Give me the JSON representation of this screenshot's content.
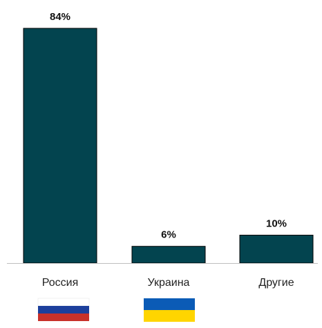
{
  "chart_data": {
    "type": "bar",
    "categories": [
      "Россия",
      "Украина",
      "Другие"
    ],
    "values": [
      84,
      6,
      10
    ],
    "value_labels": [
      "84%",
      "6%",
      "10%"
    ],
    "ylim": [
      0,
      84
    ],
    "grid": false,
    "title": "",
    "xlabel": "",
    "ylabel": ""
  },
  "colors": {
    "bar": "#03444f",
    "baseline": "#bfbfbf",
    "flag_white": "#ffffff",
    "flag_blue": "#1c3f9c",
    "flag_red": "#c8312a",
    "flag_ua_blue": "#0b5bb6",
    "flag_ua_yellow": "#ffd500"
  },
  "flags": [
    {
      "category": "Россия",
      "icon": "russia-flag-icon"
    },
    {
      "category": "Украина",
      "icon": "ukraine-flag-icon"
    }
  ]
}
